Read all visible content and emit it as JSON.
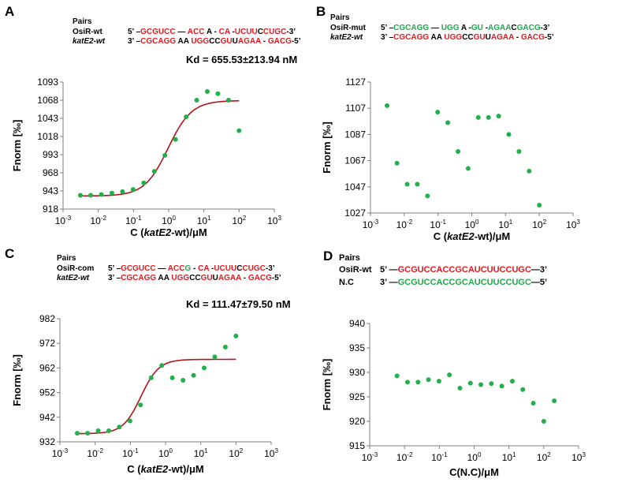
{
  "colors": {
    "red": "#e8191f",
    "green": "#1faa4a",
    "black": "#000000",
    "point": "#22b04b",
    "fit": "#b1141b"
  },
  "panels": [
    {
      "letter": "A",
      "pairs_title": "Pairs",
      "rows": [
        {
          "name": "OsiR-wt",
          "italic": false,
          "segments": [
            {
              "t": "5’ –",
              "c": "black"
            },
            {
              "t": "GCGUCC",
              "c": "red"
            },
            {
              "t": " — ",
              "c": "black"
            },
            {
              "t": "ACC",
              "c": "red"
            },
            {
              "t": " A - ",
              "c": "black"
            },
            {
              "t": "CA",
              "c": "red"
            },
            {
              "t": " -",
              "c": "black"
            },
            {
              "t": "UCUU",
              "c": "red"
            },
            {
              "t": "C",
              "c": "black"
            },
            {
              "t": "CUGC",
              "c": "red"
            },
            {
              "t": "-3’",
              "c": "black"
            }
          ]
        },
        {
          "name": "katE2-wt",
          "italic": true,
          "segments": [
            {
              "t": "3’ –",
              "c": "black"
            },
            {
              "t": "CGCAGG",
              "c": "red"
            },
            {
              "t": " AA ",
              "c": "black"
            },
            {
              "t": "UGG",
              "c": "red"
            },
            {
              "t": "CC",
              "c": "black"
            },
            {
              "t": "GU",
              "c": "red"
            },
            {
              "t": "U",
              "c": "black"
            },
            {
              "t": "AGAA",
              "c": "red"
            },
            {
              "t": " - ",
              "c": "black"
            },
            {
              "t": "GACG",
              "c": "red"
            },
            {
              "t": "-5’",
              "c": "black"
            }
          ]
        }
      ],
      "kd": "Kd = 655.53±213.94 nM"
    },
    {
      "letter": "B",
      "pairs_title": "Pairs",
      "rows": [
        {
          "name": "OsiR-mut",
          "italic": false,
          "segments": [
            {
              "t": "5’ –",
              "c": "black"
            },
            {
              "t": "CGCAGG",
              "c": "green"
            },
            {
              "t": " — ",
              "c": "black"
            },
            {
              "t": "UGG",
              "c": "green"
            },
            {
              "t": " A -",
              "c": "black"
            },
            {
              "t": "GU",
              "c": "green"
            },
            {
              "t": " -",
              "c": "black"
            },
            {
              "t": "AGAA",
              "c": "green"
            },
            {
              "t": "C",
              "c": "black"
            },
            {
              "t": "GACG",
              "c": "green"
            },
            {
              "t": "-3’",
              "c": "black"
            }
          ]
        },
        {
          "name": "katE2-wt",
          "italic": true,
          "segments": [
            {
              "t": "3’ –",
              "c": "black"
            },
            {
              "t": "CGCAGG",
              "c": "red"
            },
            {
              "t": " AA ",
              "c": "black"
            },
            {
              "t": "UGG",
              "c": "red"
            },
            {
              "t": "CC",
              "c": "black"
            },
            {
              "t": "GU",
              "c": "red"
            },
            {
              "t": "U",
              "c": "black"
            },
            {
              "t": "AGAA",
              "c": "red"
            },
            {
              "t": " - ",
              "c": "black"
            },
            {
              "t": "GACG",
              "c": "red"
            },
            {
              "t": "-5’",
              "c": "black"
            }
          ]
        }
      ],
      "kd": ""
    },
    {
      "letter": "C",
      "pairs_title": "Pairs",
      "rows": [
        {
          "name": "OsiR-com",
          "italic": false,
          "segments": [
            {
              "t": "5’ –",
              "c": "black"
            },
            {
              "t": "GCGUCC",
              "c": "red"
            },
            {
              "t": " — ",
              "c": "black"
            },
            {
              "t": "ACC",
              "c": "red"
            },
            {
              "t": "G",
              "c": "green"
            },
            {
              "t": " - ",
              "c": "black"
            },
            {
              "t": "CA",
              "c": "red"
            },
            {
              "t": " -",
              "c": "black"
            },
            {
              "t": "UCUU",
              "c": "red"
            },
            {
              "t": "C",
              "c": "black"
            },
            {
              "t": "CUGC",
              "c": "red"
            },
            {
              "t": "-3’",
              "c": "black"
            }
          ]
        },
        {
          "name": "katE2-wt",
          "italic": true,
          "segments": [
            {
              "t": "3’ –",
              "c": "black"
            },
            {
              "t": "CGCAGG",
              "c": "red"
            },
            {
              "t": " AA ",
              "c": "black"
            },
            {
              "t": "UGG",
              "c": "red"
            },
            {
              "t": "CC",
              "c": "black"
            },
            {
              "t": "GU",
              "c": "red"
            },
            {
              "t": "U",
              "c": "black"
            },
            {
              "t": "AGAA",
              "c": "red"
            },
            {
              "t": " - ",
              "c": "black"
            },
            {
              "t": "GACG",
              "c": "red"
            },
            {
              "t": "-5’",
              "c": "black"
            }
          ]
        }
      ],
      "kd": "Kd = 111.47±79.50 nM"
    },
    {
      "letter": "D",
      "pairs_title": "Pairs",
      "rows": [
        {
          "name": "OsiR-wt",
          "italic": false,
          "segments": [
            {
              "t": "5’ —",
              "c": "black"
            },
            {
              "t": "GCGUCCACCGCAUCUUCCUGC",
              "c": "red"
            },
            {
              "t": "—3’",
              "c": "black"
            }
          ]
        },
        {
          "name": "N.C",
          "italic": false,
          "segments": [
            {
              "t": "3’ —",
              "c": "black"
            },
            {
              "t": "GCGUCCACCGCAUCUUCCUGC",
              "c": "green"
            },
            {
              "t": "—5’",
              "c": "black"
            }
          ]
        }
      ],
      "kd": ""
    }
  ],
  "chart_data": [
    {
      "panel": "A",
      "type": "scatter",
      "x_scale": "log",
      "xlim": [
        0.001,
        1000
      ],
      "ylim": [
        918,
        1093
      ],
      "yticks": [
        918,
        943,
        968,
        993,
        1018,
        1043,
        1068,
        1093
      ],
      "xtick_exponents": [
        "-3",
        "-2",
        "-1",
        "0",
        "1",
        "2",
        "3"
      ],
      "xlabel": {
        "prefix": "C (",
        "italic": "katE2",
        "suffix": "-wt)/μM"
      },
      "ylabel": "Fnorm [‰]",
      "x": [
        0.0031,
        0.0061,
        0.0122,
        0.0244,
        0.0488,
        0.0977,
        0.195,
        0.391,
        0.781,
        1.56,
        3.13,
        6.25,
        12.5,
        25,
        50,
        100
      ],
      "y": [
        937,
        937,
        938,
        940,
        942,
        945,
        954,
        970,
        992,
        1014,
        1045,
        1068,
        1080,
        1077,
        1068,
        1026
      ],
      "fit": {
        "baseline": 936,
        "plateau": 1067.5,
        "kd_uM": 0.96,
        "hill": 1.3
      }
    },
    {
      "panel": "B",
      "type": "scatter",
      "x_scale": "log",
      "xlim": [
        0.001,
        1000
      ],
      "ylim": [
        1027,
        1127
      ],
      "yticks": [
        1027,
        1047,
        1067,
        1087,
        1107,
        1127
      ],
      "xtick_exponents": [
        "-3",
        "-2",
        "-1",
        "0",
        "1",
        "2",
        "3"
      ],
      "xlabel": {
        "prefix": "C (",
        "italic": "katE2",
        "suffix": "-wt)/μM"
      },
      "ylabel": "Fnorm [‰]",
      "x": [
        0.0031,
        0.0061,
        0.0122,
        0.0244,
        0.0488,
        0.0977,
        0.195,
        0.391,
        0.781,
        1.56,
        3.13,
        6.25,
        12.5,
        25,
        50,
        100
      ],
      "y": [
        1109,
        1065,
        1049,
        1049,
        1040,
        1104,
        1096,
        1074,
        1061,
        1100,
        1100,
        1101,
        1087,
        1074,
        1059,
        1033
      ]
    },
    {
      "panel": "C",
      "type": "scatter",
      "x_scale": "log",
      "xlim": [
        0.001,
        1000
      ],
      "ylim": [
        932,
        982
      ],
      "yticks": [
        932,
        942,
        952,
        962,
        972,
        982
      ],
      "xtick_exponents": [
        "-3",
        "-2",
        "-1",
        "0",
        "1",
        "2",
        "3"
      ],
      "xlabel": {
        "prefix": "C (",
        "italic": "katE2",
        "suffix": "-wt)/μM"
      },
      "ylabel": "Fnorm [‰]",
      "x": [
        0.0031,
        0.0061,
        0.0122,
        0.0244,
        0.0488,
        0.0977,
        0.195,
        0.391,
        0.781,
        1.56,
        3.13,
        6.25,
        12.5,
        25,
        50,
        100
      ],
      "y": [
        935.5,
        935.5,
        936.5,
        936.5,
        938,
        940.5,
        947,
        958,
        963,
        958,
        957,
        959,
        962,
        966.5,
        970.5,
        975
      ],
      "fit": {
        "baseline": 935.3,
        "plateau": 965.5,
        "kd_uM": 0.2,
        "hill": 1.7
      }
    },
    {
      "panel": "D",
      "type": "scatter",
      "x_scale": "log",
      "xlim": [
        0.001,
        1000
      ],
      "ylim": [
        915,
        940
      ],
      "yticks": [
        915,
        920,
        925,
        930,
        935,
        940
      ],
      "xtick_exponents": [
        "-3",
        "-2",
        "-1",
        "0",
        "1",
        "2",
        "3"
      ],
      "xlabel": {
        "prefix": "C(N.C)/μM",
        "italic": "",
        "suffix": ""
      },
      "ylabel": "Fnorm [‰]",
      "x": [
        0.0061,
        0.0122,
        0.0244,
        0.0488,
        0.0977,
        0.195,
        0.391,
        0.781,
        1.56,
        3.13,
        6.25,
        12.5,
        25,
        50,
        100,
        200
      ],
      "y": [
        929.3,
        928,
        928,
        928.5,
        928.2,
        929.5,
        926.8,
        927.8,
        927.5,
        927.7,
        927.2,
        928.2,
        926.5,
        923.7,
        920,
        924.2
      ]
    }
  ]
}
